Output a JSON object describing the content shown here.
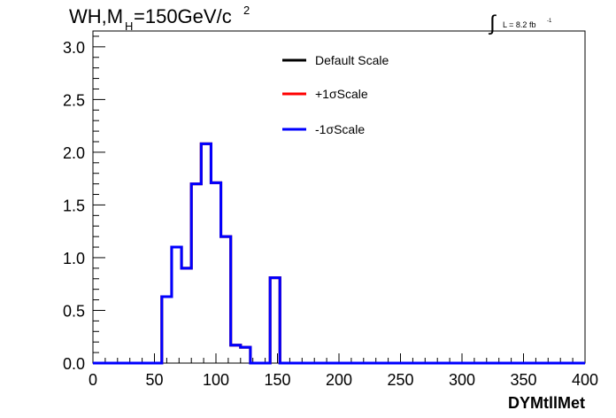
{
  "header": {
    "title_main": "WH,M",
    "title_sub": "H",
    "title_rest": "=150GeV/c",
    "title_sup": "2",
    "lumi_integral": "∫",
    "lumi_text": "L = 8.2 fb",
    "lumi_sup": "-1"
  },
  "chart_data": {
    "type": "line",
    "drawstyle": "step",
    "xlabel": "DYMtllMet",
    "ylabel": "",
    "xlim": [
      0,
      400
    ],
    "ylim": [
      0,
      3.15
    ],
    "xticks": [
      "0",
      "50",
      "100",
      "150",
      "200",
      "250",
      "300",
      "350",
      "400"
    ],
    "yticks": [
      "0.0",
      "0.5",
      "1.0",
      "1.5",
      "2.0",
      "2.5",
      "3.0"
    ],
    "grid": false,
    "legend_position": "top-center",
    "bin_edges": [
      0,
      8,
      16,
      24,
      32,
      40,
      48,
      56,
      64,
      72,
      80,
      88,
      96,
      104,
      112,
      120,
      128,
      136,
      144,
      152,
      160,
      168,
      176,
      184,
      192,
      200,
      208,
      216,
      224,
      232,
      240,
      248,
      256,
      264,
      272,
      280,
      288,
      296,
      304,
      312,
      320,
      328,
      336,
      344,
      352,
      360,
      368,
      376,
      384,
      392,
      400
    ],
    "series": [
      {
        "name": "Default Scale",
        "color": "#000000",
        "values": [
          0,
          0,
          0,
          0,
          0,
          0,
          0,
          0.63,
          1.1,
          0.9,
          1.7,
          2.08,
          1.71,
          1.2,
          0.17,
          0.15,
          0,
          0,
          0.81,
          0,
          0,
          0,
          0,
          0,
          0,
          0,
          0,
          0,
          0,
          0,
          0,
          0,
          0,
          0,
          0,
          0,
          0,
          0,
          0,
          0,
          0,
          0,
          0,
          0,
          0,
          0,
          0,
          0,
          0,
          0
        ]
      },
      {
        "name": "+1σScale",
        "color": "#ff0000",
        "values": [
          0,
          0,
          0,
          0,
          0,
          0,
          0,
          0.63,
          1.1,
          0.9,
          1.7,
          2.08,
          1.71,
          1.2,
          0.17,
          0.15,
          0,
          0,
          0.81,
          0,
          0,
          0,
          0,
          0,
          0,
          0,
          0,
          0,
          0,
          0,
          0,
          0,
          0,
          0,
          0,
          0,
          0,
          0,
          0,
          0,
          0,
          0,
          0,
          0,
          0,
          0,
          0,
          0,
          0,
          0
        ]
      },
      {
        "name": "-1σScale",
        "color": "#0000ff",
        "values": [
          0,
          0,
          0,
          0,
          0,
          0,
          0,
          0.63,
          1.1,
          0.9,
          1.7,
          2.08,
          1.71,
          1.2,
          0.17,
          0.15,
          0,
          0,
          0.81,
          0,
          0,
          0,
          0,
          0,
          0,
          0,
          0,
          0,
          0,
          0,
          0,
          0,
          0,
          0,
          0,
          0,
          0,
          0,
          0,
          0,
          0,
          0,
          0,
          0,
          0,
          0,
          0,
          0,
          0,
          0
        ]
      }
    ]
  }
}
